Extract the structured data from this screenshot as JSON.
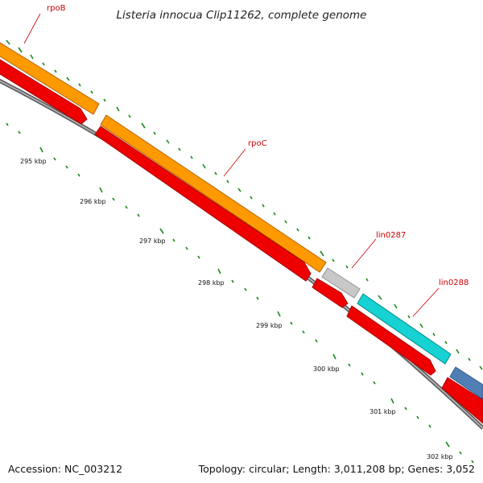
{
  "title": "Listeria innocua Clip11262, complete genome",
  "genes": [
    {
      "name": "rpoB"
    },
    {
      "name": "rpoC"
    },
    {
      "name": "lin0287"
    },
    {
      "name": "lin0288"
    }
  ],
  "ticks": [
    "295 kbp",
    "296 kbp",
    "297 kbp",
    "298 kbp",
    "299 kbp",
    "300 kbp",
    "301 kbp",
    "302 kbp"
  ],
  "footer": {
    "accession": "Accession: NC_003212",
    "topology": "Topology: circular; Length: 3,011,208 bp; Genes: 3,052"
  },
  "colors": {
    "rpo_genes": "#ff9900",
    "hypothetical_gene": "#c0c0c0",
    "lin0288": "#00cccc",
    "next_gene": "#4f7fb5",
    "cds_track": "#ee0000",
    "backbone": "#808080",
    "gc_ticks": "#1a8a1a",
    "label": "#cc0000"
  }
}
